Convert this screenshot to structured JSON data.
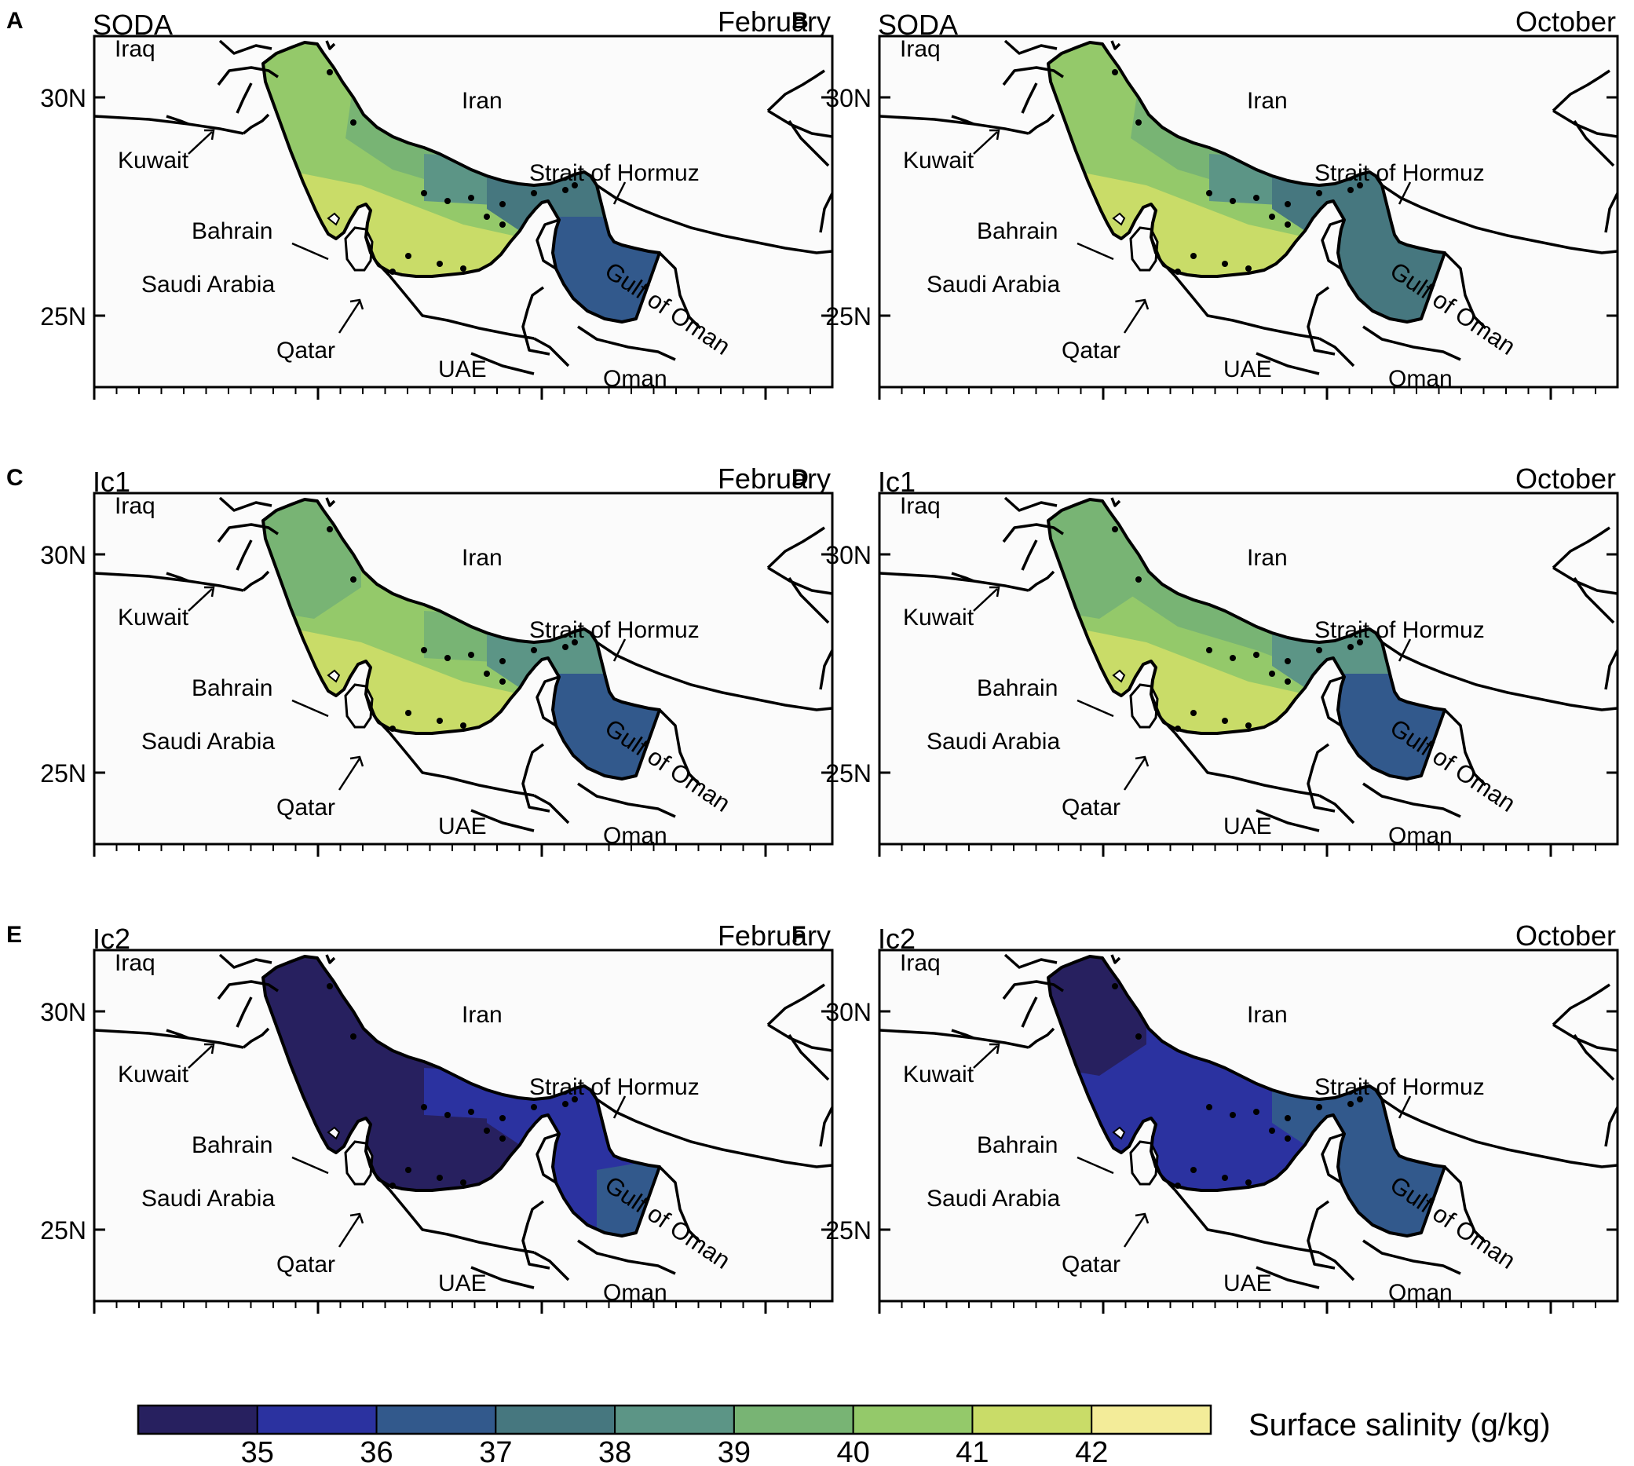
{
  "panels": [
    {
      "letter": "A",
      "dataset": "SODA",
      "month": "February",
      "scheme": "soda_feb"
    },
    {
      "letter": "B",
      "dataset": "SODA",
      "month": "October",
      "scheme": "soda_oct"
    },
    {
      "letter": "C",
      "dataset": "Ic1",
      "month": "February",
      "scheme": "ic1_feb"
    },
    {
      "letter": "D",
      "dataset": "Ic1",
      "month": "October",
      "scheme": "ic1_oct"
    },
    {
      "letter": "E",
      "dataset": "Ic2",
      "month": "February",
      "scheme": "ic2_feb"
    },
    {
      "letter": "F",
      "dataset": "Ic2",
      "month": "October",
      "scheme": "ic2_oct"
    }
  ],
  "place_labels": {
    "iraq": "Iraq",
    "iran": "Iran",
    "kuwait": "Kuwait",
    "bahrain": "Bahrain",
    "saudi": "Saudi Arabia",
    "qatar": "Qatar",
    "uae": "UAE",
    "oman": "Oman",
    "hormuz": "Strait of Hormuz",
    "gulf_oman": "Gulf of Oman"
  },
  "lat_labels": [
    "30N",
    "25N"
  ],
  "colorbar": {
    "label": "Surface salinity (g/kg)",
    "ticks": [
      "35",
      "36",
      "37",
      "38",
      "39",
      "40",
      "41",
      "42"
    ],
    "colors": [
      "#27205f",
      "#2b32a0",
      "#32598c",
      "#46777f",
      "#5c9586",
      "#78b474",
      "#94c96a",
      "#c9dc68",
      "#f3ec99"
    ]
  },
  "colors": {
    "land": "#fbfbfb",
    "border": "#000000"
  }
}
